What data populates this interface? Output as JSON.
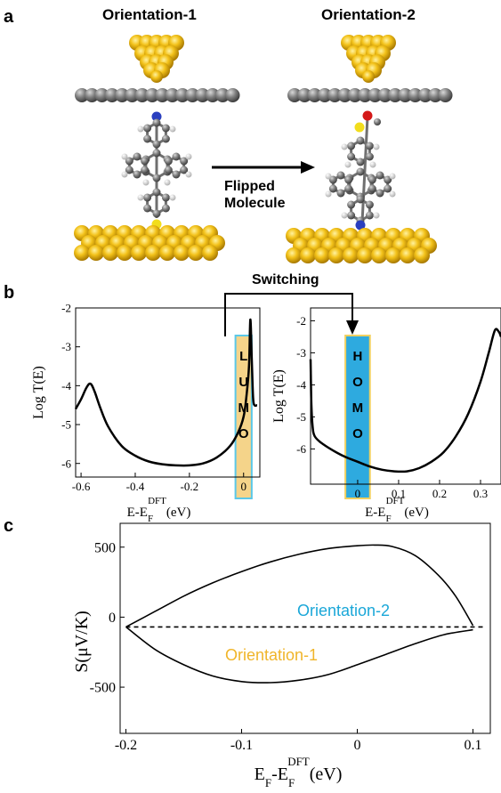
{
  "panel_a": {
    "letter": "a",
    "left_title": "Orientation-1",
    "right_title": "Orientation-2",
    "arrow_label_line1": "Flipped",
    "arrow_label_line2": "Molecule"
  },
  "panel_b": {
    "letter": "b",
    "switch_label": "Switching",
    "left_box_letters": [
      "L",
      "U",
      "M",
      "O"
    ],
    "right_box_letters": [
      "H",
      "O",
      "M",
      "O"
    ],
    "colors": {
      "lumo_box": "#f5d48a",
      "lumo_border": "#5bc8e8",
      "homo_box": "#2eaadf",
      "homo_border": "#f0d060"
    }
  },
  "panel_c": {
    "letter": "c",
    "series_label_2": "Orientation-2",
    "series_label_1": "Orientation-1",
    "colors": {
      "orientation_2": "#1aa7d8",
      "orientation_1": "#f0b52a"
    }
  },
  "chart_data": [
    {
      "type": "line",
      "ylabel": "Log T(E)",
      "xlabel_main": "E-E",
      "xlabel_sub": "F",
      "xlabel_sup": "DFT",
      "xlabel_unit": "(eV)",
      "xlim": [
        -0.62,
        0.06
      ],
      "ylim": [
        -6.35,
        -2.0
      ],
      "xticks": [
        -0.6,
        -0.4,
        -0.2,
        0
      ],
      "xtick_labels": [
        "-0.6",
        "-0.4",
        "-0.2",
        "0"
      ],
      "yticks": [
        -2,
        -3,
        -4,
        -5,
        -6
      ],
      "ytick_labels": [
        "-2",
        "-3",
        "-4",
        "-5",
        "-6"
      ],
      "x": [
        -0.62,
        -0.6,
        -0.58,
        -0.565,
        -0.55,
        -0.53,
        -0.5,
        -0.45,
        -0.4,
        -0.35,
        -0.3,
        -0.25,
        -0.2,
        -0.15,
        -0.1,
        -0.05,
        -0.02,
        0.0,
        0.01,
        0.02,
        0.025,
        0.03,
        0.035,
        0.04,
        0.05
      ],
      "y": [
        -4.6,
        -4.35,
        -4.05,
        -3.95,
        -4.15,
        -4.55,
        -5.05,
        -5.55,
        -5.8,
        -5.95,
        -6.02,
        -6.05,
        -6.05,
        -6.0,
        -5.85,
        -5.55,
        -5.2,
        -4.8,
        -4.3,
        -3.5,
        -2.3,
        -3.3,
        -4.3,
        -4.5,
        -4.5
      ]
    },
    {
      "type": "line",
      "ylabel": "Log T(E)",
      "xlabel_main": "E-E",
      "xlabel_sub": "F",
      "xlabel_sup": "DFT",
      "xlabel_unit": "(eV)",
      "xlim": [
        -0.115,
        0.35
      ],
      "ylim": [
        -7.1,
        -1.6
      ],
      "xticks": [
        0,
        0.1,
        0.2,
        0.3
      ],
      "xtick_labels": [
        "0",
        "0.1",
        "0.2",
        "0.3"
      ],
      "yticks": [
        -2,
        -3,
        -4,
        -5,
        -6
      ],
      "ytick_labels": [
        "-2",
        "-3",
        "-4",
        "-5",
        "-6"
      ],
      "x": [
        -0.115,
        -0.113,
        -0.11,
        -0.105,
        -0.09,
        -0.06,
        -0.03,
        0.0,
        0.03,
        0.06,
        0.09,
        0.12,
        0.15,
        0.18,
        0.21,
        0.24,
        0.27,
        0.3,
        0.32,
        0.335,
        0.345,
        0.35
      ],
      "y": [
        -3.2,
        -4.6,
        -5.3,
        -5.6,
        -5.8,
        -6.05,
        -6.25,
        -6.4,
        -6.55,
        -6.65,
        -6.7,
        -6.7,
        -6.6,
        -6.4,
        -6.1,
        -5.6,
        -4.9,
        -3.9,
        -3.0,
        -2.3,
        -2.35,
        -2.5
      ]
    },
    {
      "type": "line",
      "ylabel": "S(μV/K)",
      "xlabel_main": "E",
      "xlabel_sub1": "F",
      "xlabel_mid": "-E",
      "xlabel_sub2": "F",
      "xlabel_sup": "DFT",
      "xlabel_unit": "(eV)",
      "xlim": [
        -0.205,
        0.115
      ],
      "ylim": [
        -830,
        670
      ],
      "xticks": [
        -0.2,
        -0.1,
        0,
        0.1
      ],
      "xtick_labels": [
        "-0.2",
        "-0.1",
        "0",
        "0.1"
      ],
      "yticks": [
        500,
        0,
        -500
      ],
      "ytick_labels": [
        "500",
        "0",
        "-500"
      ],
      "series": [
        {
          "x": [
            -0.2,
            -0.175,
            -0.15,
            -0.125,
            -0.1,
            -0.075,
            -0.05,
            -0.025,
            0.0,
            0.015,
            0.03,
            0.05,
            0.07,
            0.085,
            0.1
          ],
          "y": [
            -70,
            40,
            150,
            245,
            325,
            395,
            450,
            490,
            510,
            515,
            505,
            440,
            300,
            150,
            -60
          ]
        },
        {
          "x": [
            -0.2,
            -0.175,
            -0.15,
            -0.125,
            -0.1,
            -0.075,
            -0.05,
            -0.025,
            0.0,
            0.025,
            0.05,
            0.075,
            0.1
          ],
          "y": [
            -70,
            -230,
            -340,
            -420,
            -460,
            -468,
            -450,
            -410,
            -340,
            -265,
            -190,
            -125,
            -90
          ]
        },
        {
          "style": "dashed",
          "x": [
            -0.2,
            0.11
          ],
          "y": [
            -70,
            -70
          ]
        }
      ]
    }
  ]
}
